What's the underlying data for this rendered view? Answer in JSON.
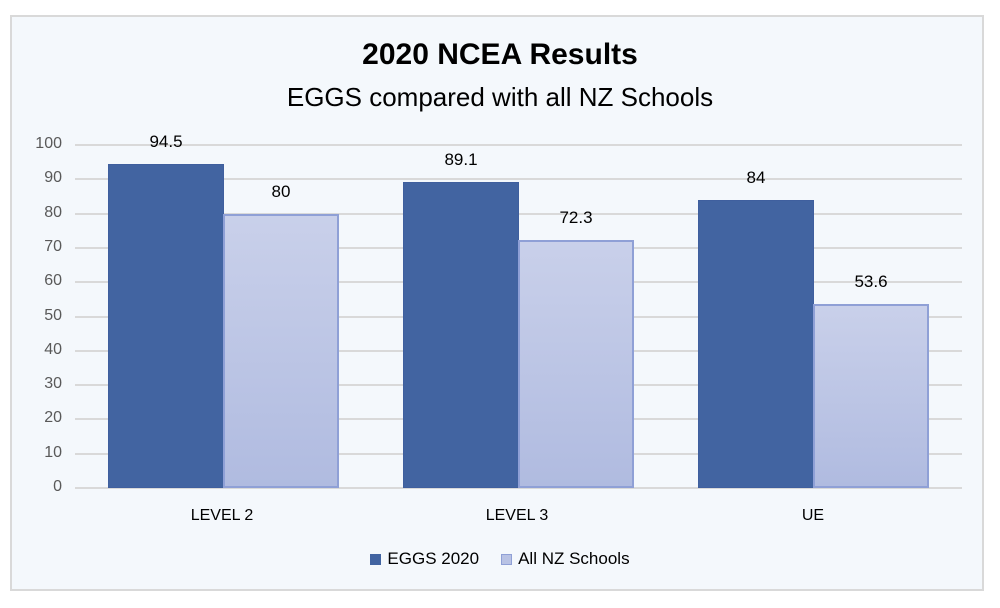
{
  "chart_data": {
    "type": "bar",
    "title": "2020 NCEA Results",
    "subtitle": "EGGS compared with all NZ Schools",
    "xlabel": "",
    "ylabel": "",
    "ylim": [
      0,
      100
    ],
    "yticks": [
      "0",
      "10",
      "20",
      "30",
      "40",
      "50",
      "60",
      "70",
      "80",
      "90",
      "100"
    ],
    "grid": true,
    "legend_position": "bottom",
    "categories": [
      "LEVEL 2",
      "LEVEL 3",
      "UE"
    ],
    "series": [
      {
        "name": "EGGS 2020",
        "values": [
          94.5,
          89.1,
          84
        ],
        "labels": [
          "94.5",
          "89.1",
          "84"
        ],
        "color": "#4264a1"
      },
      {
        "name": "All NZ Schools",
        "values": [
          80,
          72.3,
          53.6
        ],
        "labels": [
          "80",
          "72.3",
          "53.6"
        ],
        "color": "#b8c2e4"
      }
    ]
  }
}
